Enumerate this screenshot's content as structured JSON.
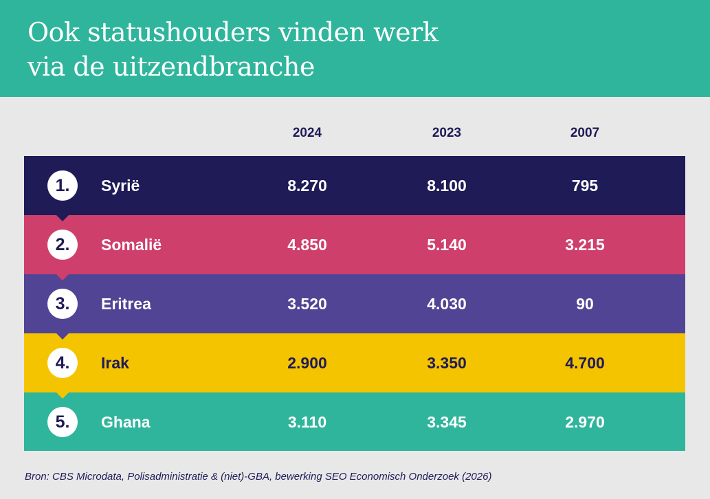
{
  "header": {
    "title_line1": "Ook statushouders vinden werk",
    "title_line2": "via de uitzendbranche"
  },
  "colors": {
    "header_bg": "#2fb59c",
    "page_bg": "#e8e8e8",
    "navy": "#1f1b57"
  },
  "chart_data": {
    "type": "table",
    "title": "Ook statushouders vinden werk via de uitzendbranche",
    "columns": [
      "2024",
      "2023",
      "2007"
    ],
    "rows": [
      {
        "rank": "1.",
        "country": "Syrië",
        "values": [
          "8.270",
          "8.100",
          "795"
        ],
        "color": "#1f1b57",
        "text_color": "#ffffff"
      },
      {
        "rank": "2.",
        "country": "Somalië",
        "values": [
          "4.850",
          "5.140",
          "3.215"
        ],
        "color": "#cf3f6c",
        "text_color": "#ffffff"
      },
      {
        "rank": "3.",
        "country": "Eritrea",
        "values": [
          "3.520",
          "4.030",
          "90"
        ],
        "color": "#524494",
        "text_color": "#ffffff"
      },
      {
        "rank": "4.",
        "country": "Irak",
        "values": [
          "2.900",
          "3.350",
          "4.700"
        ],
        "color": "#f5c400",
        "text_color": "#1f1b57"
      },
      {
        "rank": "5.",
        "country": "Ghana",
        "values": [
          "3.110",
          "3.345",
          "2.970"
        ],
        "color": "#2fb59c",
        "text_color": "#ffffff"
      }
    ],
    "source": "Bron: CBS Microdata, Polisadministratie & (niet)-GBA, bewerking SEO Economisch Onderzoek (2026)"
  }
}
